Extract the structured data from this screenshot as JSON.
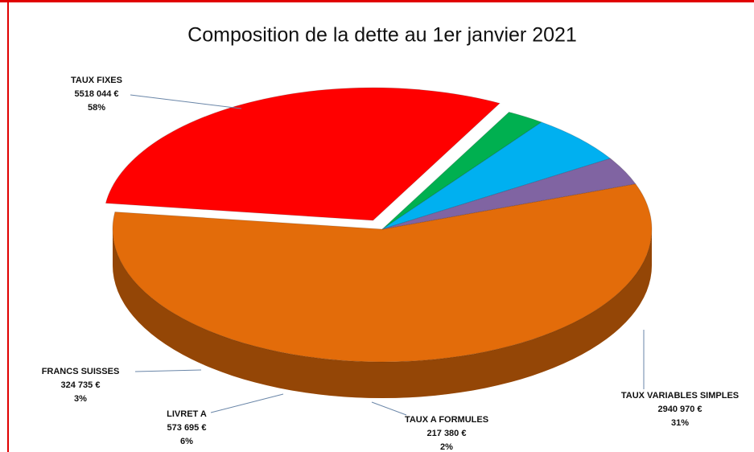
{
  "chart_data": {
    "type": "pie3d",
    "title": "Composition de la dette au 1er janvier 2021",
    "categories": [
      "TAUX FIXES",
      "TAUX VARIABLES SIMPLES",
      "TAUX A FORMULES",
      "LIVRET A",
      "FRANCS SUISSES"
    ],
    "values": [
      5518044,
      2940970,
      217380,
      573695,
      324735
    ],
    "value_labels": [
      "5518 044 €",
      "2940 970 €",
      "217 380 €",
      "573 695 €",
      "324 735 €"
    ],
    "percentages": [
      58,
      31,
      2,
      6,
      3
    ],
    "percentage_labels": [
      "58%",
      "31%",
      "2%",
      "6%",
      "3%"
    ],
    "colors": [
      "#e36c0a",
      "#ff0000",
      "#00b050",
      "#00b0f0",
      "#8064a2"
    ]
  }
}
